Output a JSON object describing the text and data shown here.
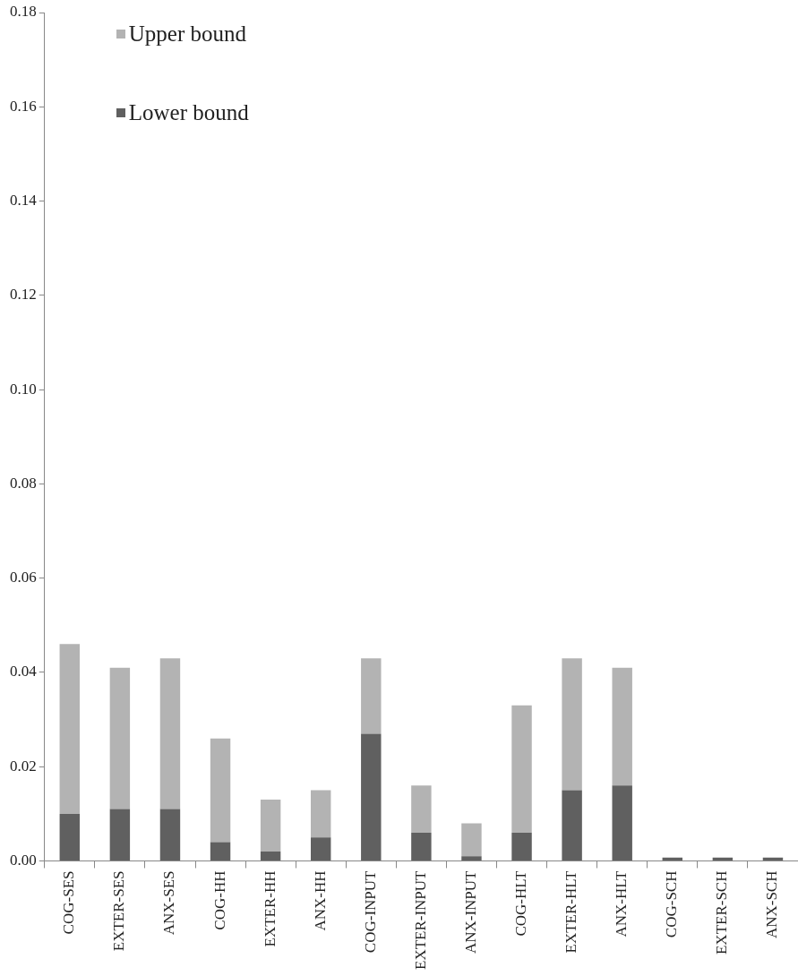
{
  "chart_data": {
    "type": "bar",
    "stacked": true,
    "legend": "top left",
    "grid": false,
    "categories": [
      "COG-SES",
      "EXTER-SES",
      "ANX-SES",
      "COG-HH",
      "EXTER-HH",
      "ANX-HH",
      "COG-INPUT",
      "EXTER-INPUT",
      "ANX-INPUT",
      "COG-HLT",
      "EXTER-HLT",
      "ANX-HLT",
      "COG-SCH",
      "EXTER-SCH",
      "ANX-SCH"
    ],
    "series": [
      {
        "name": "Lower bound",
        "color": "#606060",
        "values": [
          0.01,
          0.011,
          0.011,
          0.004,
          0.002,
          0.005,
          0.027,
          0.006,
          0.001,
          0.006,
          0.015,
          0.016,
          0.0007,
          0.0007,
          0.0007
        ]
      },
      {
        "name": "Upper bound",
        "color": "#b3b3b3",
        "values": [
          0.036,
          0.03,
          0.032,
          0.022,
          0.011,
          0.01,
          0.016,
          0.01,
          0.007,
          0.027,
          0.028,
          0.025,
          0,
          0,
          0
        ]
      }
    ],
    "ylim": [
      0,
      0.18
    ],
    "yticks": [
      {
        "value": 0,
        "label": "0.00"
      },
      {
        "value": 0.02,
        "label": "0.02"
      },
      {
        "value": 0.04,
        "label": "0.04"
      },
      {
        "value": 0.06,
        "label": "0.06"
      },
      {
        "value": 0.08,
        "label": "0.08"
      },
      {
        "value": 0.1,
        "label": "0.10"
      },
      {
        "value": 0.12,
        "label": "0.12"
      },
      {
        "value": 0.14,
        "label": "0.14"
      },
      {
        "value": 0.16,
        "label": "0.16"
      },
      {
        "value": 0.18,
        "label": "0.18"
      }
    ]
  }
}
